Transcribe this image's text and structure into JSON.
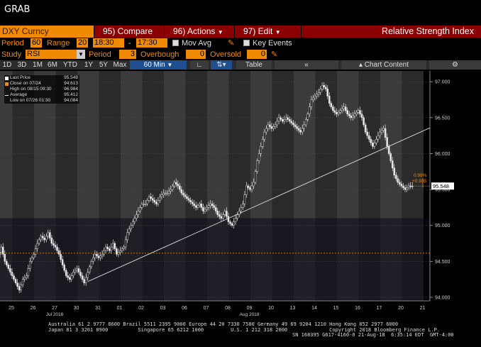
{
  "window": {
    "title": "GRAB"
  },
  "toolbar": {
    "ticker": "DXY Curncy",
    "compare_label": "95) Compare",
    "actions_label": "96) Actions",
    "edit_label": "97) Edit",
    "chart_title": "Relative Strength Index",
    "colors": {
      "bar": "#8b0000",
      "accent": "#f08a00"
    }
  },
  "settings": {
    "period_label": "Period",
    "period_value": "60",
    "range_label": "Range",
    "range_value": "20",
    "time_from": "18:30",
    "time_sep": "-",
    "time_to": "17:30",
    "mov_avg_label": "Mov Avg",
    "key_events_label": "Key Events",
    "study_label": "Study",
    "study_value": "RSI",
    "study_period_label": "Period",
    "study_period_value": "3",
    "overbought_label": "Overbough",
    "overbought_value": "0",
    "oversold_label": "Oversold",
    "oversold_value": "0"
  },
  "timeframes": [
    "1D",
    "3D",
    "1M",
    "6M",
    "YTD",
    "1Y",
    "5Y",
    "Max"
  ],
  "interval": {
    "label": "60 Min",
    "arrow": "▼"
  },
  "chart_toolbar": {
    "table_label": "Table",
    "back_label": "«",
    "chart_content_label": "Chart Content",
    "gear_icon": "gear-icon"
  },
  "legend": [
    {
      "label": "Last Price",
      "value": "95.548",
      "color": "#ffffff"
    },
    {
      "label": "Close on 07/24",
      "value": "94.613",
      "color": "#f08a00"
    },
    {
      "label": "High on 08/15 09:30",
      "value": "96.984",
      "color": "#ffffff"
    },
    {
      "label": "Average",
      "value": "95.412",
      "color": "#ffffff"
    },
    {
      "label": "Low on 07/26 01:30",
      "value": "94.084",
      "color": "#ffffff"
    }
  ],
  "annotations": {
    "pct": "0.99%",
    "chg": "+0.935",
    "last_tag": "95.548"
  },
  "footer": {
    "line1": "Australia 61 2 9777 8600 Brazil 5511 2395 9000 Europe 44 20 7330 7500 Germany 49 69 9204 1210 Hong Kong 852 2977 6000",
    "line2": "Japan 81 3 3201 8900          Singapore 65 6212 1000         U.S. 1 212 318 2000              Copyright 2018 Bloomberg Finance L.P.",
    "line3": "SN 168395 G617-4160-0 21-Aug-18  6:35:14 EDT  GMT-4:00"
  },
  "chart_data": {
    "type": "candlestick",
    "ylim": [
      93.95,
      97.15
    ],
    "y_ticks": [
      "97.000",
      "96.500",
      "96.000",
      "95.500",
      "95.000",
      "94.500",
      "94.000"
    ],
    "x_ticks": [
      {
        "label": "25",
        "sub": ""
      },
      {
        "label": "26",
        "sub": ""
      },
      {
        "label": "27",
        "sub": "Jul 2018"
      },
      {
        "label": "30",
        "sub": ""
      },
      {
        "label": "31",
        "sub": ""
      },
      {
        "label": "01",
        "sub": ""
      },
      {
        "label": "02",
        "sub": ""
      },
      {
        "label": "03",
        "sub": ""
      },
      {
        "label": "06",
        "sub": ""
      },
      {
        "label": "07",
        "sub": ""
      },
      {
        "label": "08",
        "sub": ""
      },
      {
        "label": "09",
        "sub": "Aug 2018"
      },
      {
        "label": "10",
        "sub": ""
      },
      {
        "label": "13",
        "sub": ""
      },
      {
        "label": "14",
        "sub": ""
      },
      {
        "label": "15",
        "sub": ""
      },
      {
        "label": "16",
        "sub": ""
      },
      {
        "label": "17",
        "sub": ""
      },
      {
        "label": "20",
        "sub": ""
      },
      {
        "label": "21",
        "sub": ""
      }
    ],
    "price_path_by_day": [
      [
        94.6,
        94.55,
        94.7,
        94.5,
        94.4,
        94.3
      ],
      [
        94.2,
        94.1,
        94.25,
        94.3,
        94.5,
        94.6
      ],
      [
        94.75,
        94.85,
        94.8,
        94.9,
        94.75,
        94.7
      ],
      [
        94.6,
        94.45,
        94.3,
        94.25,
        94.35,
        94.4
      ],
      [
        94.3,
        94.2,
        94.35,
        94.5,
        94.6,
        94.55
      ],
      [
        94.6,
        94.7,
        94.65,
        94.75,
        94.6,
        94.65
      ],
      [
        94.7,
        94.9,
        95.0,
        95.1,
        95.2,
        95.3
      ],
      [
        95.3,
        95.4,
        95.35,
        95.3,
        95.4,
        95.45
      ],
      [
        95.45,
        95.5,
        95.6,
        95.55,
        95.45,
        95.4
      ],
      [
        95.35,
        95.3,
        95.25,
        95.3,
        95.2,
        95.25
      ],
      [
        95.3,
        95.25,
        95.15,
        95.1,
        95.2,
        95.05
      ],
      [
        95.0,
        95.1,
        95.2,
        95.3,
        95.55,
        95.5
      ],
      [
        95.6,
        95.9,
        96.1,
        96.3,
        96.4,
        96.35
      ],
      [
        96.4,
        96.5,
        96.45,
        96.5,
        96.45,
        96.4
      ],
      [
        96.35,
        96.3,
        96.4,
        96.55,
        96.75,
        96.8
      ],
      [
        96.85,
        96.95,
        96.9,
        96.7,
        96.6,
        96.55
      ],
      [
        96.6,
        96.65,
        96.55,
        96.5,
        96.55,
        96.6
      ],
      [
        96.5,
        96.3,
        96.2,
        96.1,
        96.2,
        96.3
      ],
      [
        96.35,
        96.1,
        95.9,
        95.7,
        95.6,
        95.55
      ],
      [
        95.5,
        95.55,
        95.548
      ]
    ],
    "close_line_value": 94.613,
    "trendline": {
      "from": {
        "day": "31",
        "value": 94.22
      },
      "to": {
        "day": "21",
        "value": 96.25
      }
    }
  }
}
